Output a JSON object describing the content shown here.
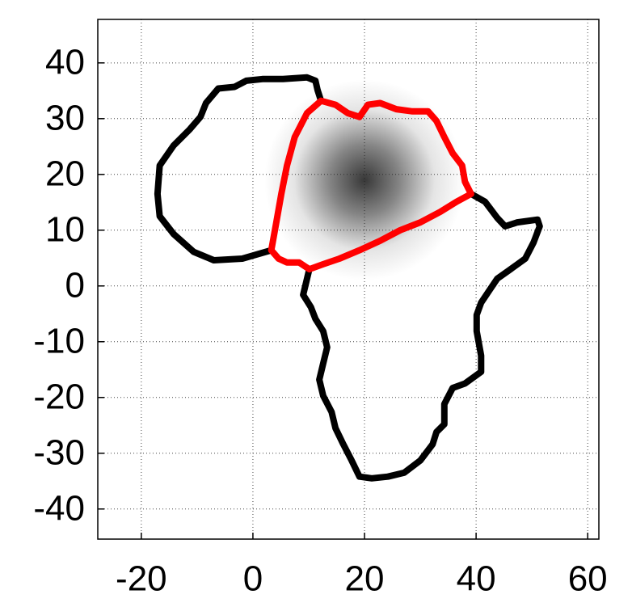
{
  "chart_data": {
    "type": "map",
    "xlim": [
      -27.8,
      62
    ],
    "ylim": [
      -45.4,
      47.8
    ],
    "xticks": [
      -20,
      0,
      20,
      40,
      60
    ],
    "yticks": [
      -40,
      -30,
      -20,
      -10,
      0,
      10,
      20,
      30,
      40
    ],
    "grid": true,
    "density": {
      "x": 20,
      "y": 19,
      "sigma": 6,
      "color": "#222222"
    },
    "outlines": [
      {
        "color": "#000000",
        "x": [
          3.3,
          -1.9,
          -7.0,
          -10.6,
          -14.2,
          -16.7,
          -17.1,
          -16.7,
          -14.2,
          -11.3,
          -9.4,
          -8.4,
          -6.2,
          -3.3,
          -1.2,
          1.7,
          5.4,
          9.7,
          11.2,
          11.6,
          12.2
        ],
        "y": [
          6.4,
          4.9,
          4.6,
          6.1,
          9.3,
          12.5,
          16.5,
          21.6,
          25.2,
          28.1,
          30.3,
          32.8,
          35.4,
          35.7,
          36.8,
          37.1,
          37.1,
          37.4,
          36.8,
          35.1,
          33.2
        ]
      },
      {
        "color": "#000000",
        "x": [
          39.1,
          41.6,
          43.8,
          45.2,
          47.4,
          51.0,
          51.4,
          50.3,
          48.8,
          45.9,
          43.8,
          42.3,
          40.9,
          40.1,
          40.1,
          40.9,
          40.9,
          38.0,
          35.8,
          34.3,
          34.3,
          32.9,
          32.2,
          30.0,
          27.1,
          24.2,
          21.3,
          19.1,
          17.7,
          16.2,
          14.8,
          14.1,
          12.6,
          11.9,
          12.6,
          13.3,
          12.6,
          11.2,
          10.4,
          9.0,
          9.7,
          10.1
        ],
        "y": [
          16.5,
          15.1,
          12.2,
          10.7,
          11.4,
          11.9,
          10.7,
          7.8,
          4.9,
          2.8,
          1.3,
          -0.9,
          -3.0,
          -5.2,
          -8.1,
          -12.5,
          -15.4,
          -17.5,
          -18.3,
          -21.2,
          -24.8,
          -26.2,
          -28.4,
          -31.3,
          -33.5,
          -34.2,
          -34.5,
          -34.2,
          -31.3,
          -28.4,
          -25.5,
          -22.6,
          -19.7,
          -16.8,
          -13.9,
          -11.0,
          -8.1,
          -5.9,
          -3.8,
          -1.6,
          1.3,
          3.0
        ]
      },
      {
        "color": "#ff0000",
        "x": [
          3.3,
          4.2,
          5.1,
          6.1,
          7.5,
          9.7,
          12.2,
          14.8,
          17.0,
          19.1,
          20.6,
          22.8,
          25.7,
          28.6,
          31.4,
          32.9,
          34.3,
          35.8,
          37.5,
          38.0,
          39.1,
          36.5,
          33.6,
          30.0,
          26.4,
          22.8,
          19.1,
          15.5,
          12.6,
          10.1,
          8.3,
          6.1,
          4.6,
          3.3
        ],
        "y": [
          6.4,
          11.4,
          16.5,
          21.6,
          26.7,
          31.0,
          33.2,
          32.5,
          31.0,
          30.3,
          32.5,
          32.8,
          31.7,
          31.3,
          31.3,
          29.6,
          26.7,
          23.8,
          21.6,
          18.7,
          16.5,
          15.1,
          13.3,
          11.4,
          10.0,
          8.1,
          6.4,
          4.9,
          3.9,
          3.0,
          4.2,
          4.2,
          4.9,
          6.4
        ]
      }
    ]
  }
}
